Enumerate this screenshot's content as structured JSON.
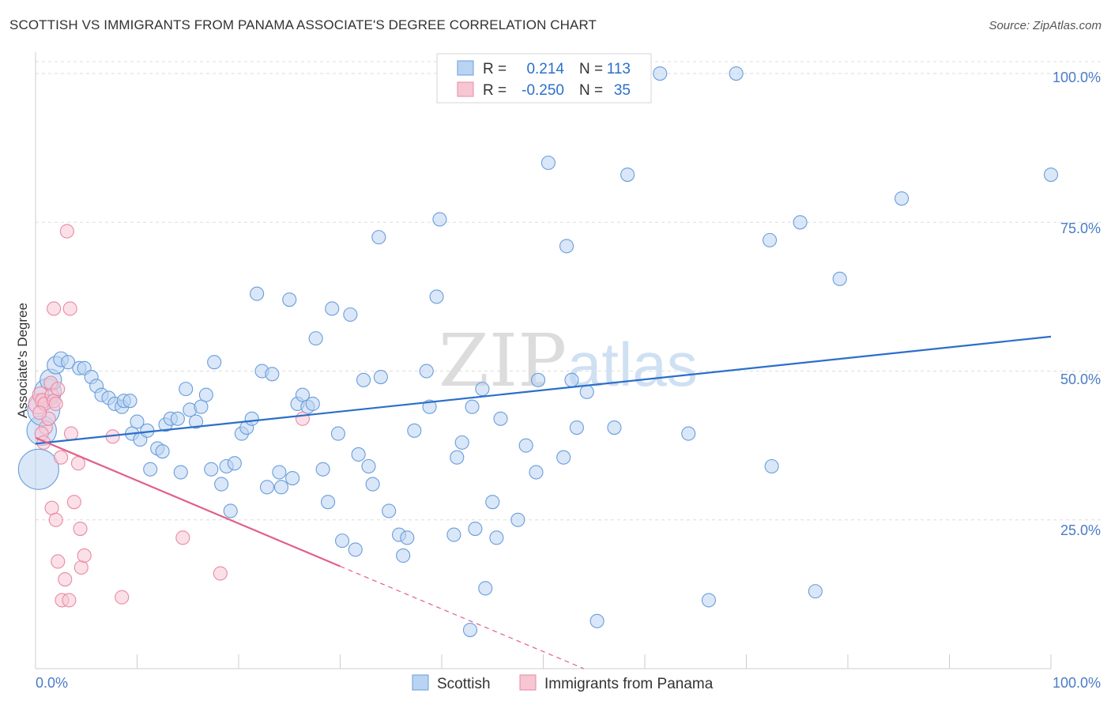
{
  "title": "SCOTTISH VS IMMIGRANTS FROM PANAMA ASSOCIATE'S DEGREE CORRELATION CHART",
  "source": "Source: ZipAtlas.com",
  "watermark": {
    "zip": "ZIP",
    "atlas": "atlas"
  },
  "colors": {
    "scottish_fill": "#b9d3f2",
    "scottish_stroke": "#6a9ddb",
    "scottish_line": "#2b6fc9",
    "panama_fill": "#f7c6d3",
    "panama_stroke": "#e88aa6",
    "panama_line": "#e0608a",
    "grid": "#dddddd",
    "axis_text": "#4a7cc6"
  },
  "legend": {
    "row1": {
      "r_label": "R =",
      "r_value": "0.214",
      "n_label": "N =",
      "n_value": "113"
    },
    "row2": {
      "r_label": "R =",
      "r_value": "-0.250",
      "n_label": "N =",
      "n_value": "35"
    }
  },
  "bottom_legend": {
    "series1": "Scottish",
    "series2": "Immigrants from Panama"
  },
  "chart_data": {
    "type": "scatter",
    "title": "SCOTTISH VS IMMIGRANTS FROM PANAMA ASSOCIATE'S DEGREE CORRELATION CHART",
    "xlabel": "",
    "ylabel": "Associate's Degree",
    "xlim": [
      0,
      100
    ],
    "ylim": [
      0,
      102
    ],
    "x_tick_labels": [
      "0.0%",
      "100.0%"
    ],
    "y_tick_labels": [
      "100.0%",
      "75.0%",
      "50.0%",
      "25.0%"
    ],
    "y_tick_values": [
      100,
      75,
      50,
      25
    ],
    "grid": true,
    "series": [
      {
        "name": "Scottish",
        "R": 0.214,
        "N": 113,
        "trend": {
          "x": [
            0,
            100
          ],
          "y": [
            37.8,
            55.8
          ],
          "style": "solid"
        },
        "points": [
          [
            0.3,
            33.5,
            3
          ],
          [
            0.6,
            40,
            2.2
          ],
          [
            0.8,
            43.5,
            2.4
          ],
          [
            1.2,
            46.5,
            2
          ],
          [
            1.5,
            48.5,
            1.6
          ],
          [
            2.0,
            51,
            1.3
          ],
          [
            2.5,
            52,
            1.1
          ],
          [
            3.2,
            51.5,
            1
          ],
          [
            4.3,
            50.5,
            1
          ],
          [
            4.8,
            50.5,
            1
          ],
          [
            5.5,
            49,
            1
          ],
          [
            6.0,
            47.5,
            1
          ],
          [
            6.5,
            46,
            1
          ],
          [
            7.2,
            45.5,
            1
          ],
          [
            7.8,
            44.5,
            1
          ],
          [
            8.5,
            44,
            1
          ],
          [
            8.7,
            45,
            1
          ],
          [
            9.3,
            45,
            1
          ],
          [
            9.5,
            39.5,
            1
          ],
          [
            10.0,
            41.5,
            1
          ],
          [
            10.3,
            38.5,
            1
          ],
          [
            11.0,
            40,
            1
          ],
          [
            11.3,
            33.5,
            1
          ],
          [
            12.0,
            37,
            1
          ],
          [
            12.5,
            36.5,
            1
          ],
          [
            12.8,
            41,
            1
          ],
          [
            13.3,
            42,
            1
          ],
          [
            14.0,
            42,
            1
          ],
          [
            14.3,
            33,
            1
          ],
          [
            14.8,
            47,
            1
          ],
          [
            15.2,
            43.5,
            1
          ],
          [
            15.8,
            41.5,
            1
          ],
          [
            16.3,
            44,
            1
          ],
          [
            16.8,
            46,
            1
          ],
          [
            17.3,
            33.5,
            1
          ],
          [
            17.6,
            51.5,
            1
          ],
          [
            18.3,
            31,
            1
          ],
          [
            18.8,
            34,
            1
          ],
          [
            19.2,
            26.5,
            1
          ],
          [
            19.6,
            34.5,
            1
          ],
          [
            20.3,
            39.5,
            1
          ],
          [
            20.8,
            40.5,
            1
          ],
          [
            21.3,
            42,
            1
          ],
          [
            21.8,
            63,
            1
          ],
          [
            22.3,
            50,
            1
          ],
          [
            22.8,
            30.5,
            1
          ],
          [
            23.3,
            49.5,
            1
          ],
          [
            24.0,
            33,
            1
          ],
          [
            24.2,
            30.5,
            1
          ],
          [
            25.0,
            62,
            1
          ],
          [
            25.3,
            32,
            1
          ],
          [
            25.8,
            44.5,
            1
          ],
          [
            26.3,
            46,
            1
          ],
          [
            26.8,
            44,
            1
          ],
          [
            27.3,
            44.5,
            1
          ],
          [
            27.6,
            55.5,
            1
          ],
          [
            28.3,
            33.5,
            1
          ],
          [
            28.8,
            28,
            1
          ],
          [
            29.2,
            60.5,
            1
          ],
          [
            29.8,
            39.5,
            1
          ],
          [
            30.2,
            21.5,
            1
          ],
          [
            31.0,
            59.5,
            1
          ],
          [
            31.5,
            20,
            1
          ],
          [
            31.8,
            36,
            1
          ],
          [
            32.3,
            48.5,
            1
          ],
          [
            32.8,
            34,
            1
          ],
          [
            33.2,
            31,
            1
          ],
          [
            33.8,
            72.5,
            1
          ],
          [
            34.0,
            49,
            1
          ],
          [
            34.8,
            26.5,
            1
          ],
          [
            35.8,
            22.5,
            1
          ],
          [
            36.2,
            19,
            1
          ],
          [
            36.6,
            22,
            1
          ],
          [
            37.3,
            40,
            1
          ],
          [
            38.5,
            50,
            1
          ],
          [
            38.8,
            44,
            1
          ],
          [
            39.5,
            62.5,
            1
          ],
          [
            39.8,
            75.5,
            1
          ],
          [
            41.2,
            22.5,
            1
          ],
          [
            41.5,
            35.5,
            1
          ],
          [
            42.0,
            38,
            1
          ],
          [
            42.8,
            6.5,
            1
          ],
          [
            43.0,
            44,
            1
          ],
          [
            43.3,
            23.5,
            1
          ],
          [
            44.0,
            47,
            1
          ],
          [
            44.3,
            13.5,
            1
          ],
          [
            45.0,
            28,
            1
          ],
          [
            45.4,
            22,
            1
          ],
          [
            45.8,
            42,
            1
          ],
          [
            47.5,
            25,
            1
          ],
          [
            48.3,
            37.5,
            1
          ],
          [
            49.3,
            33,
            1
          ],
          [
            49.5,
            48.5,
            1
          ],
          [
            50.5,
            85,
            1
          ],
          [
            52.0,
            35.5,
            1
          ],
          [
            52.3,
            71,
            1
          ],
          [
            52.8,
            48.5,
            1
          ],
          [
            53.3,
            40.5,
            1
          ],
          [
            54.3,
            46.5,
            1
          ],
          [
            55.3,
            8,
            1
          ],
          [
            57.0,
            40.5,
            1
          ],
          [
            58.3,
            83,
            1
          ],
          [
            61.5,
            100,
            1
          ],
          [
            64.3,
            39.5,
            1
          ],
          [
            66.3,
            11.5,
            1
          ],
          [
            69.0,
            100,
            1
          ],
          [
            72.3,
            72,
            1
          ],
          [
            72.5,
            34,
            1
          ],
          [
            75.3,
            75,
            1
          ],
          [
            76.8,
            13,
            1
          ],
          [
            79.2,
            65.5,
            1
          ],
          [
            85.3,
            79,
            1
          ],
          [
            100.0,
            83,
            1
          ]
        ]
      },
      {
        "name": "Immigrants from Panama",
        "R": -0.25,
        "N": 35,
        "trend": {
          "x": [
            0,
            30
          ],
          "y": [
            38.8,
            17.2
          ],
          "style": "solid",
          "dashed_extension": {
            "x": [
              30,
              54
            ],
            "y": [
              17.2,
              0
            ]
          }
        },
        "points": [
          [
            0.3,
            44.5,
            1.5
          ],
          [
            0.5,
            46,
            1.2
          ],
          [
            0.7,
            45,
            1.1
          ],
          [
            0.9,
            44.5,
            1
          ],
          [
            1.0,
            40.5,
            1
          ],
          [
            1.3,
            42,
            1
          ],
          [
            1.5,
            48,
            1
          ],
          [
            1.6,
            46,
            1
          ],
          [
            1.8,
            45,
            1
          ],
          [
            2.0,
            44.5,
            1
          ],
          [
            2.2,
            47,
            1
          ],
          [
            0.6,
            39.5,
            1
          ],
          [
            0.8,
            38,
            1
          ],
          [
            1.6,
            27,
            1
          ],
          [
            1.8,
            60.5,
            1
          ],
          [
            2.0,
            25,
            1
          ],
          [
            2.2,
            18,
            1
          ],
          [
            2.5,
            35.5,
            1
          ],
          [
            2.6,
            11.5,
            1
          ],
          [
            2.9,
            15,
            1
          ],
          [
            3.1,
            73.5,
            1
          ],
          [
            3.3,
            11.5,
            1
          ],
          [
            3.4,
            60.5,
            1
          ],
          [
            3.5,
            39.5,
            1
          ],
          [
            3.8,
            28,
            1
          ],
          [
            4.2,
            34.5,
            1
          ],
          [
            4.4,
            23.5,
            1
          ],
          [
            4.5,
            17,
            1
          ],
          [
            4.8,
            19,
            1
          ],
          [
            7.6,
            39,
            1
          ],
          [
            8.5,
            12,
            1
          ],
          [
            14.5,
            22,
            1
          ],
          [
            18.2,
            16,
            1
          ],
          [
            26.3,
            42,
            1
          ],
          [
            0.4,
            43,
            1
          ]
        ]
      }
    ]
  }
}
